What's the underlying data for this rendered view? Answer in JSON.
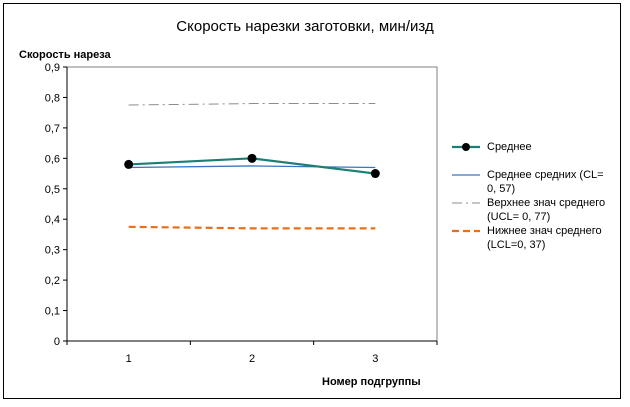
{
  "chart_data": {
    "type": "line",
    "title": "Скорость нарезки заготовки, мин/изд",
    "ylabel": "Скорость нареза",
    "xlabel": "Номер подгруппы",
    "categories": [
      "1",
      "2",
      "3"
    ],
    "ylim": [
      0,
      0.9
    ],
    "yticks": [
      "0",
      "0,1",
      "0,2",
      "0,3",
      "0,4",
      "0,5",
      "0,6",
      "0,7",
      "0,8",
      "0,9"
    ],
    "grid": false,
    "legend_position": "right",
    "series": [
      {
        "name": "Среднее",
        "values": [
          0.58,
          0.6,
          0.55
        ],
        "color": "#1a7f74",
        "style": "line-markers"
      },
      {
        "name": "Среднее средних (CL= 0, 57)",
        "values": [
          0.57,
          0.575,
          0.57
        ],
        "color": "#3a73c8",
        "style": "solid"
      },
      {
        "name": "Верхнее знач среднего (UCL= 0, 77)",
        "values": [
          0.775,
          0.78,
          0.78
        ],
        "color": "#8c8c8c",
        "style": "dash-dot"
      },
      {
        "name": "Нижнее знач среднего (LCL=0, 37)",
        "values": [
          0.375,
          0.37,
          0.37
        ],
        "color": "#e8701a",
        "style": "dashed"
      }
    ]
  }
}
